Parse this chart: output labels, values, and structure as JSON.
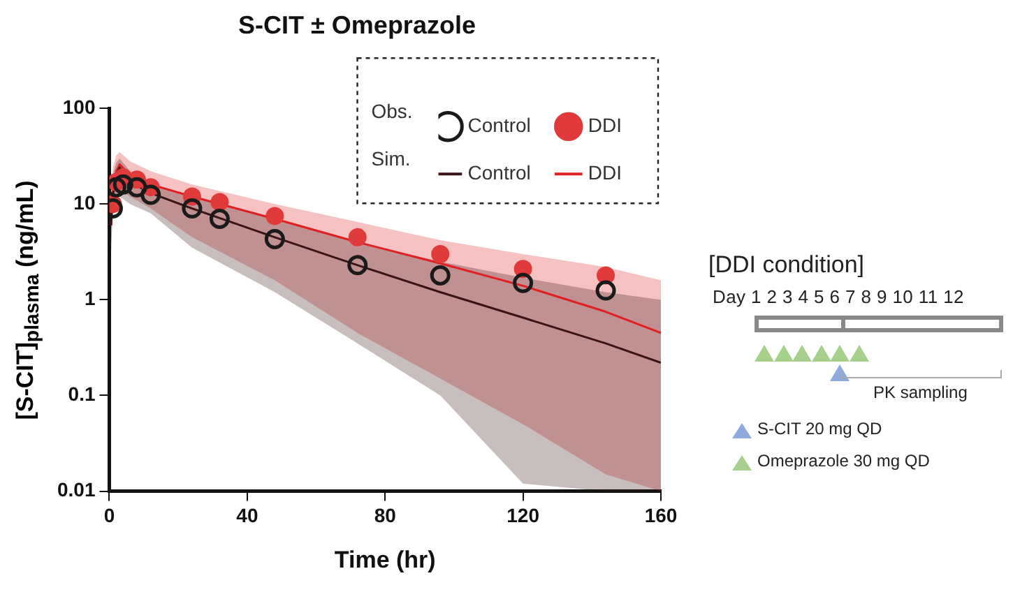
{
  "chart_data": {
    "type": "scatter",
    "title": "S-CIT ± Omeprazole",
    "xlabel": "Time (hr)",
    "ylabel": "[S-CIT]$_{plasma}$ (ng/mL)",
    "xlim": [
      0,
      160
    ],
    "xticks": [
      0,
      40,
      80,
      120,
      160
    ],
    "ylim": [
      0.01,
      100
    ],
    "yticks": [
      0.01,
      0.1,
      1,
      10,
      100
    ],
    "log": "y",
    "grid": false,
    "legend": "top right",
    "marker": "circle",
    "series": [
      {
        "name": "Control",
        "type": "line",
        "marker": "none",
        "color": "#3a1414",
        "x": [
          0.5,
          1,
          2,
          3,
          6,
          12,
          24,
          48,
          72,
          96,
          120,
          144,
          160
        ],
        "values": [
          6,
          12,
          20,
          24,
          17,
          13,
          9,
          4.5,
          2.3,
          1.2,
          0.65,
          0.35,
          0.22
        ],
        "lower": [
          3,
          8,
          11,
          12,
          10,
          8,
          3.5,
          1.2,
          0.35,
          0.1,
          0.012,
          0.01,
          0.01
        ],
        "upper": [
          12,
          20,
          27,
          30,
          22,
          16,
          12,
          7,
          4,
          2.5,
          1.7,
          1.2,
          1.0
        ]
      },
      {
        "name": "DDI",
        "type": "line",
        "marker": "none",
        "color": "#e02020",
        "x": [
          0.5,
          1,
          2,
          3,
          6,
          12,
          24,
          48,
          72,
          96,
          120,
          144,
          160
        ],
        "values": [
          6,
          13,
          22,
          26,
          20,
          16,
          12,
          7,
          4,
          2.4,
          1.4,
          0.75,
          0.45
        ],
        "lower": [
          4,
          9,
          13,
          14,
          12,
          9,
          4.5,
          1.6,
          0.45,
          0.15,
          0.05,
          0.015,
          0.01
        ],
        "upper": [
          14,
          24,
          32,
          35,
          28,
          22,
          16,
          10,
          6.5,
          4.2,
          3,
          2.2,
          1.6
        ]
      },
      {
        "name": "Control",
        "color": "#1a1a1a",
        "x": [
          1,
          2,
          4,
          8,
          12,
          24,
          32,
          48,
          72,
          96,
          120,
          144
        ],
        "values": [
          9,
          15,
          16,
          15,
          12.5,
          9,
          7,
          4.3,
          2.3,
          1.8,
          1.5,
          1.25
        ]
      },
      {
        "name": "DDI",
        "color": "#e03a3a",
        "x": [
          1,
          2,
          4,
          8,
          12,
          24,
          32,
          48,
          72,
          96,
          120,
          144
        ],
        "values": [
          10,
          17,
          19,
          18,
          15,
          12,
          10.5,
          7.5,
          4.5,
          3,
          2.1,
          1.8
        ]
      }
    ],
    "annotations": [
      "Obs.",
      "Sim.",
      "[DDI condition]",
      "Day 1 2 3 4 5 6 7 8 9 10 11 12",
      "PK sampling",
      "S-CIT 20 mg QD",
      "Omeprazole 30 mg QD"
    ]
  }
}
